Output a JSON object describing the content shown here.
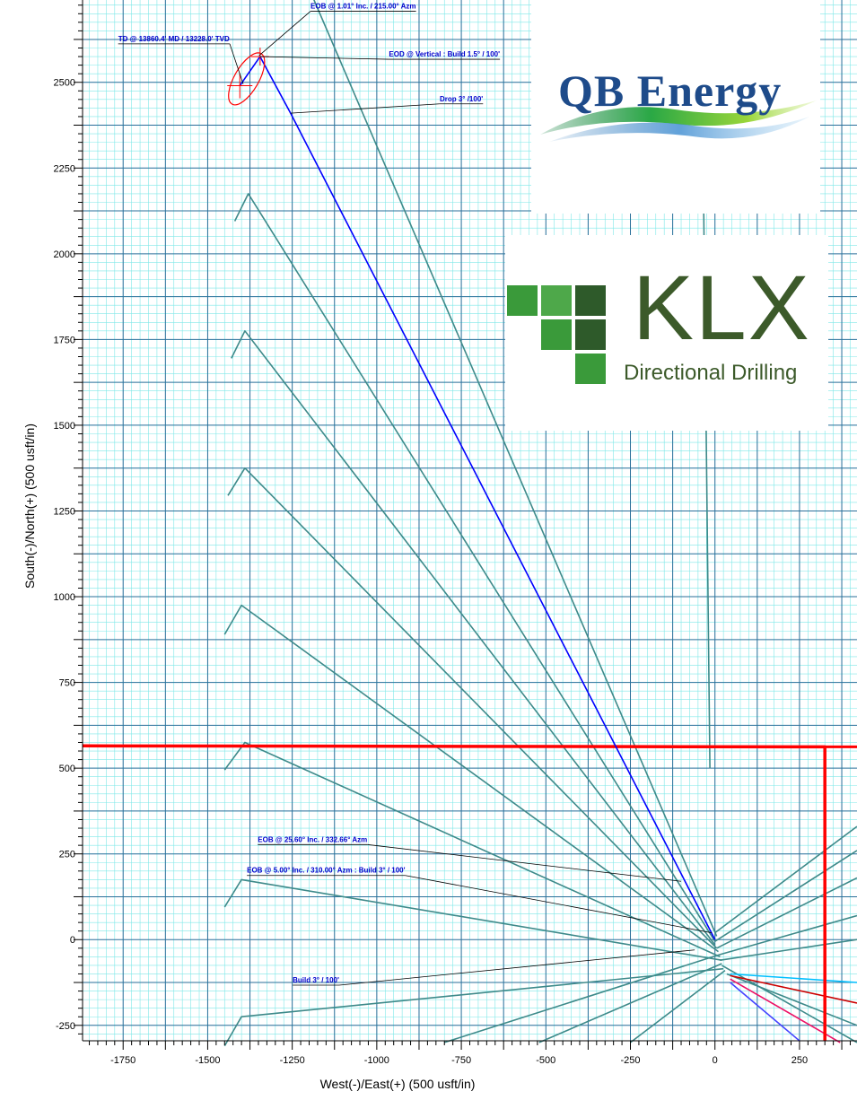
{
  "chart_data": {
    "type": "line",
    "title": "",
    "xlabel": "West(-)/East(+) (500  usft/in)",
    "ylabel": "South(-)/North(+) (500  usft/in)",
    "xlim": [
      -1870,
      420
    ],
    "ylim": [
      -295,
      2740
    ],
    "grid": true,
    "x_ticks": [
      -1750,
      -1500,
      -1250,
      -1000,
      -750,
      -500,
      -250,
      0,
      250
    ],
    "y_ticks": [
      -250,
      0,
      250,
      500,
      750,
      1000,
      1250,
      1500,
      1750,
      2000,
      2250,
      2500
    ],
    "plan_path": {
      "name": "",
      "color": "#0000ff",
      "points": [
        [
          0,
          0
        ],
        [
          -1255,
          2410
        ],
        [
          -1345,
          2575
        ],
        [
          -1405,
          2490
        ]
      ]
    },
    "offset_wells": [
      {
        "color": "#3e8a8a",
        "points": [
          [
            0,
            -5
          ],
          [
            -1380,
            2175
          ],
          [
            -1420,
            2095
          ]
        ]
      },
      {
        "color": "#3e8a8a",
        "points": [
          [
            0,
            -15
          ],
          [
            -1390,
            1775
          ],
          [
            -1430,
            1695
          ]
        ]
      },
      {
        "color": "#3e8a8a",
        "points": [
          [
            5,
            -25
          ],
          [
            -1390,
            1375
          ],
          [
            -1440,
            1295
          ]
        ]
      },
      {
        "color": "#3e8a8a",
        "points": [
          [
            10,
            -35
          ],
          [
            -1400,
            975
          ],
          [
            -1450,
            890
          ]
        ]
      },
      {
        "color": "#3e8a8a",
        "points": [
          [
            15,
            -50
          ],
          [
            -1390,
            575
          ],
          [
            -1450,
            495
          ]
        ]
      },
      {
        "color": "#3e8a8a",
        "points": [
          [
            20,
            -60
          ],
          [
            -1400,
            175
          ],
          [
            -1450,
            95
          ]
        ]
      },
      {
        "color": "#3e8a8a",
        "points": [
          [
            25,
            -85
          ],
          [
            -1400,
            -225
          ],
          [
            -1450,
            -310
          ]
        ]
      },
      {
        "color": "#3e8a8a",
        "points": [
          [
            5,
            10
          ],
          [
            -1190,
            2750
          ]
        ]
      },
      {
        "color": "#3e8a8a",
        "points": [
          [
            -15,
            500
          ],
          [
            -40,
            2740
          ]
        ]
      },
      {
        "color": "#3e8a8a",
        "points": [
          [
            10,
            -45
          ],
          [
            -800,
            -300
          ]
        ]
      },
      {
        "color": "#3e8a8a",
        "points": [
          [
            20,
            -70
          ],
          [
            -520,
            -300
          ]
        ]
      },
      {
        "color": "#3e8a8a",
        "points": [
          [
            30,
            -90
          ],
          [
            -250,
            -300
          ]
        ]
      },
      {
        "color": "#3e8a8a",
        "points": [
          [
            0,
            20
          ],
          [
            420,
            330
          ]
        ]
      },
      {
        "color": "#3e8a8a",
        "points": [
          [
            0,
            -5
          ],
          [
            420,
            260
          ]
        ]
      },
      {
        "color": "#3e8a8a",
        "points": [
          [
            5,
            -25
          ],
          [
            420,
            180
          ]
        ]
      },
      {
        "color": "#3e8a8a",
        "points": [
          [
            10,
            -45
          ],
          [
            420,
            70
          ]
        ]
      },
      {
        "color": "#3e8a8a",
        "points": [
          [
            15,
            -60
          ],
          [
            420,
            0
          ]
        ]
      },
      {
        "color": "#3e8a8a",
        "points": [
          [
            35,
            -100
          ],
          [
            420,
            -250
          ]
        ]
      },
      {
        "color": "#3e8a8a",
        "points": [
          [
            20,
            -75
          ],
          [
            420,
            -300
          ]
        ]
      }
    ],
    "colored_laterals": [
      {
        "color": "#00bfff",
        "points": [
          [
            45,
            -100
          ],
          [
            420,
            -125
          ]
        ]
      },
      {
        "color": "#cc0000",
        "points": [
          [
            45,
            -105
          ],
          [
            420,
            -185
          ]
        ]
      },
      {
        "color": "#ee1166",
        "points": [
          [
            45,
            -115
          ],
          [
            370,
            -300
          ]
        ]
      },
      {
        "color": "#4444ff",
        "points": [
          [
            45,
            -125
          ],
          [
            250,
            -295
          ]
        ]
      }
    ],
    "lease_line": {
      "color": "#ff0000",
      "points": [
        [
          -1870,
          565
        ],
        [
          325,
          562
        ],
        [
          325,
          -295
        ]
      ],
      "ext": [
        [
          325,
          562
        ],
        [
          420,
          562
        ]
      ]
    },
    "target_ellipse": {
      "cx": -1385,
      "cy": 2510,
      "rx": 36,
      "ry": 85,
      "angle_deg": 30,
      "color": "#ff0000"
    },
    "annotations": [
      {
        "text": "EOB @ 1.01° Inc. / 215.00° Azm",
        "label_x": -1040,
        "label_y": 2715,
        "target": [
          -1348,
          2578
        ]
      },
      {
        "text": "TD @ 13860.4' MD / 13228.0' TVD",
        "label_x": -1600,
        "label_y": 2620,
        "target": [
          -1395,
          2495
        ]
      },
      {
        "text": "EOD @ Vertical : Build 1.5° / 100'",
        "label_x": -800,
        "label_y": 2575,
        "target": [
          -1345,
          2575
        ]
      },
      {
        "text": "Drop 3° /100'",
        "label_x": -750,
        "label_y": 2445,
        "target": [
          -1255,
          2410
        ]
      },
      {
        "text": "EOB @ 25.60° Inc. / 332.66° Azm",
        "label_x": -1190,
        "label_y": 285,
        "target": [
          -100,
          170
        ]
      },
      {
        "text": "EOB @ 5.00° Inc. / 310.00° Azm : Build 3° / 100'",
        "label_x": -1150,
        "label_y": 195,
        "target": [
          -10,
          20
        ]
      },
      {
        "text": "Build 3° / 100'",
        "label_x": -1180,
        "label_y": -125,
        "target": [
          -60,
          -30
        ]
      }
    ]
  },
  "logos": {
    "qb": {
      "text": "QB Energy",
      "color": "#1e4b8a"
    },
    "klx": {
      "title": "KLX",
      "subtitle": "Directional Drilling",
      "color": "#3c5a2a"
    }
  }
}
